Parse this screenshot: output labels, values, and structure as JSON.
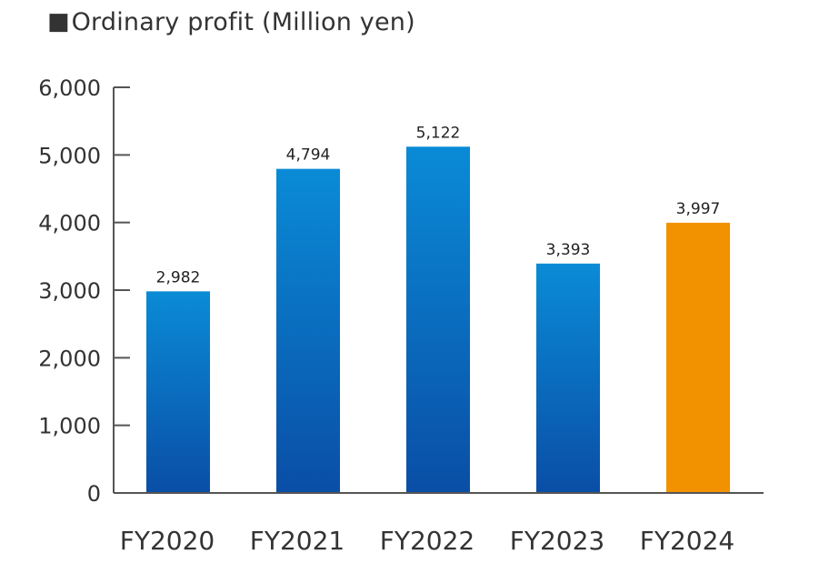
{
  "header": {
    "marker": "■",
    "title": "Ordinary profit (Million yen)"
  },
  "colors": {
    "bar_top": "#0a8bd6",
    "bar_bottom": "#0a4ea6",
    "highlight": "#f29200",
    "axis": "#555555"
  },
  "chart_data": {
    "type": "bar",
    "title": "Ordinary profit (Million yen)",
    "categories": [
      "FY2020",
      "FY2021",
      "FY2022",
      "FY2023",
      "FY2024"
    ],
    "values": [
      2982,
      4794,
      5122,
      3393,
      3997
    ],
    "data_labels": [
      "2,982",
      "4,794",
      "5,122",
      "3,393",
      "3,997"
    ],
    "ylim": [
      0,
      6000
    ],
    "yticks": [
      0,
      1000,
      2000,
      3000,
      4000,
      5000,
      6000
    ],
    "ytick_labels": [
      "0",
      "1,000",
      "2,000",
      "3,000",
      "4,000",
      "5,000",
      "6,000"
    ],
    "highlight_category": "FY2024",
    "grid": false,
    "legend": "none"
  }
}
